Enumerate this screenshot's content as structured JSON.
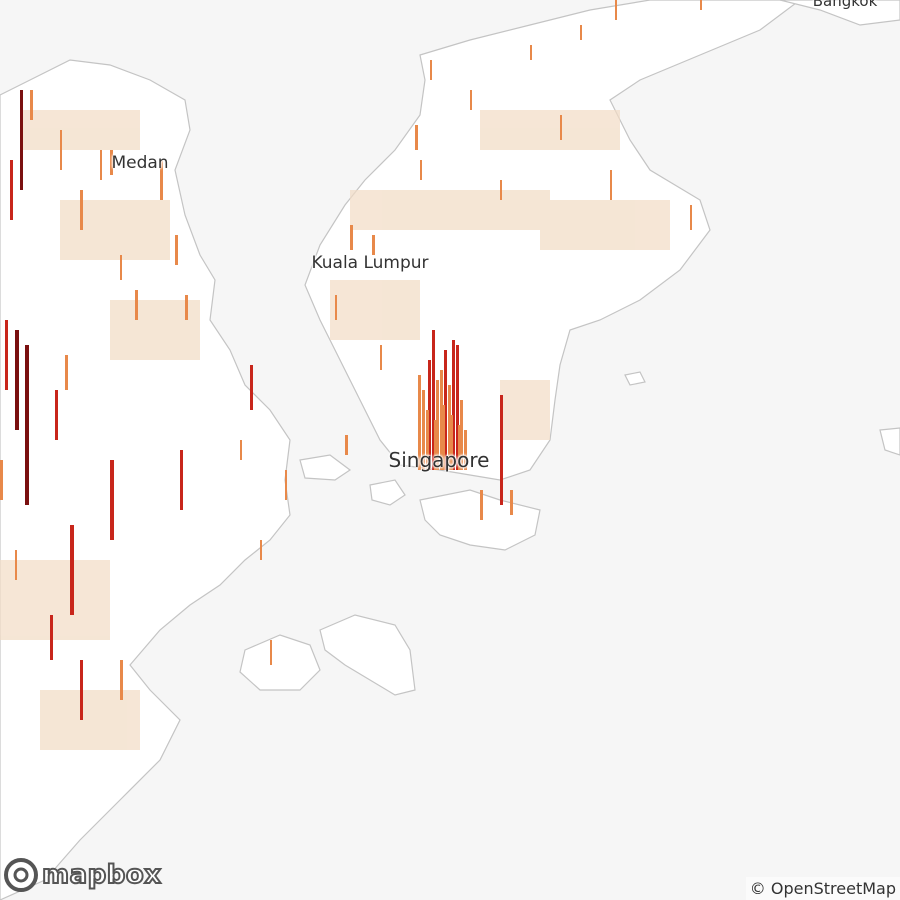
{
  "map": {
    "labels": {
      "medan": "Medan",
      "kuala_lumpur": "Kuala Lumpur",
      "singapore": "Singapore",
      "bangkok": "Bangkok"
    },
    "logo_text": "mapbox",
    "attribution": "© OpenStreetMap",
    "colors": {
      "water": "#f6f6f6",
      "land": "#ffffff",
      "border": "#b8b8b8",
      "low_density": "#f2dcc4",
      "mid_density": "#e8894a",
      "high_density": "#c8261b",
      "peak_density": "#7a1010"
    },
    "layers": [
      "land",
      "population-extrusion",
      "place-labels"
    ]
  }
}
